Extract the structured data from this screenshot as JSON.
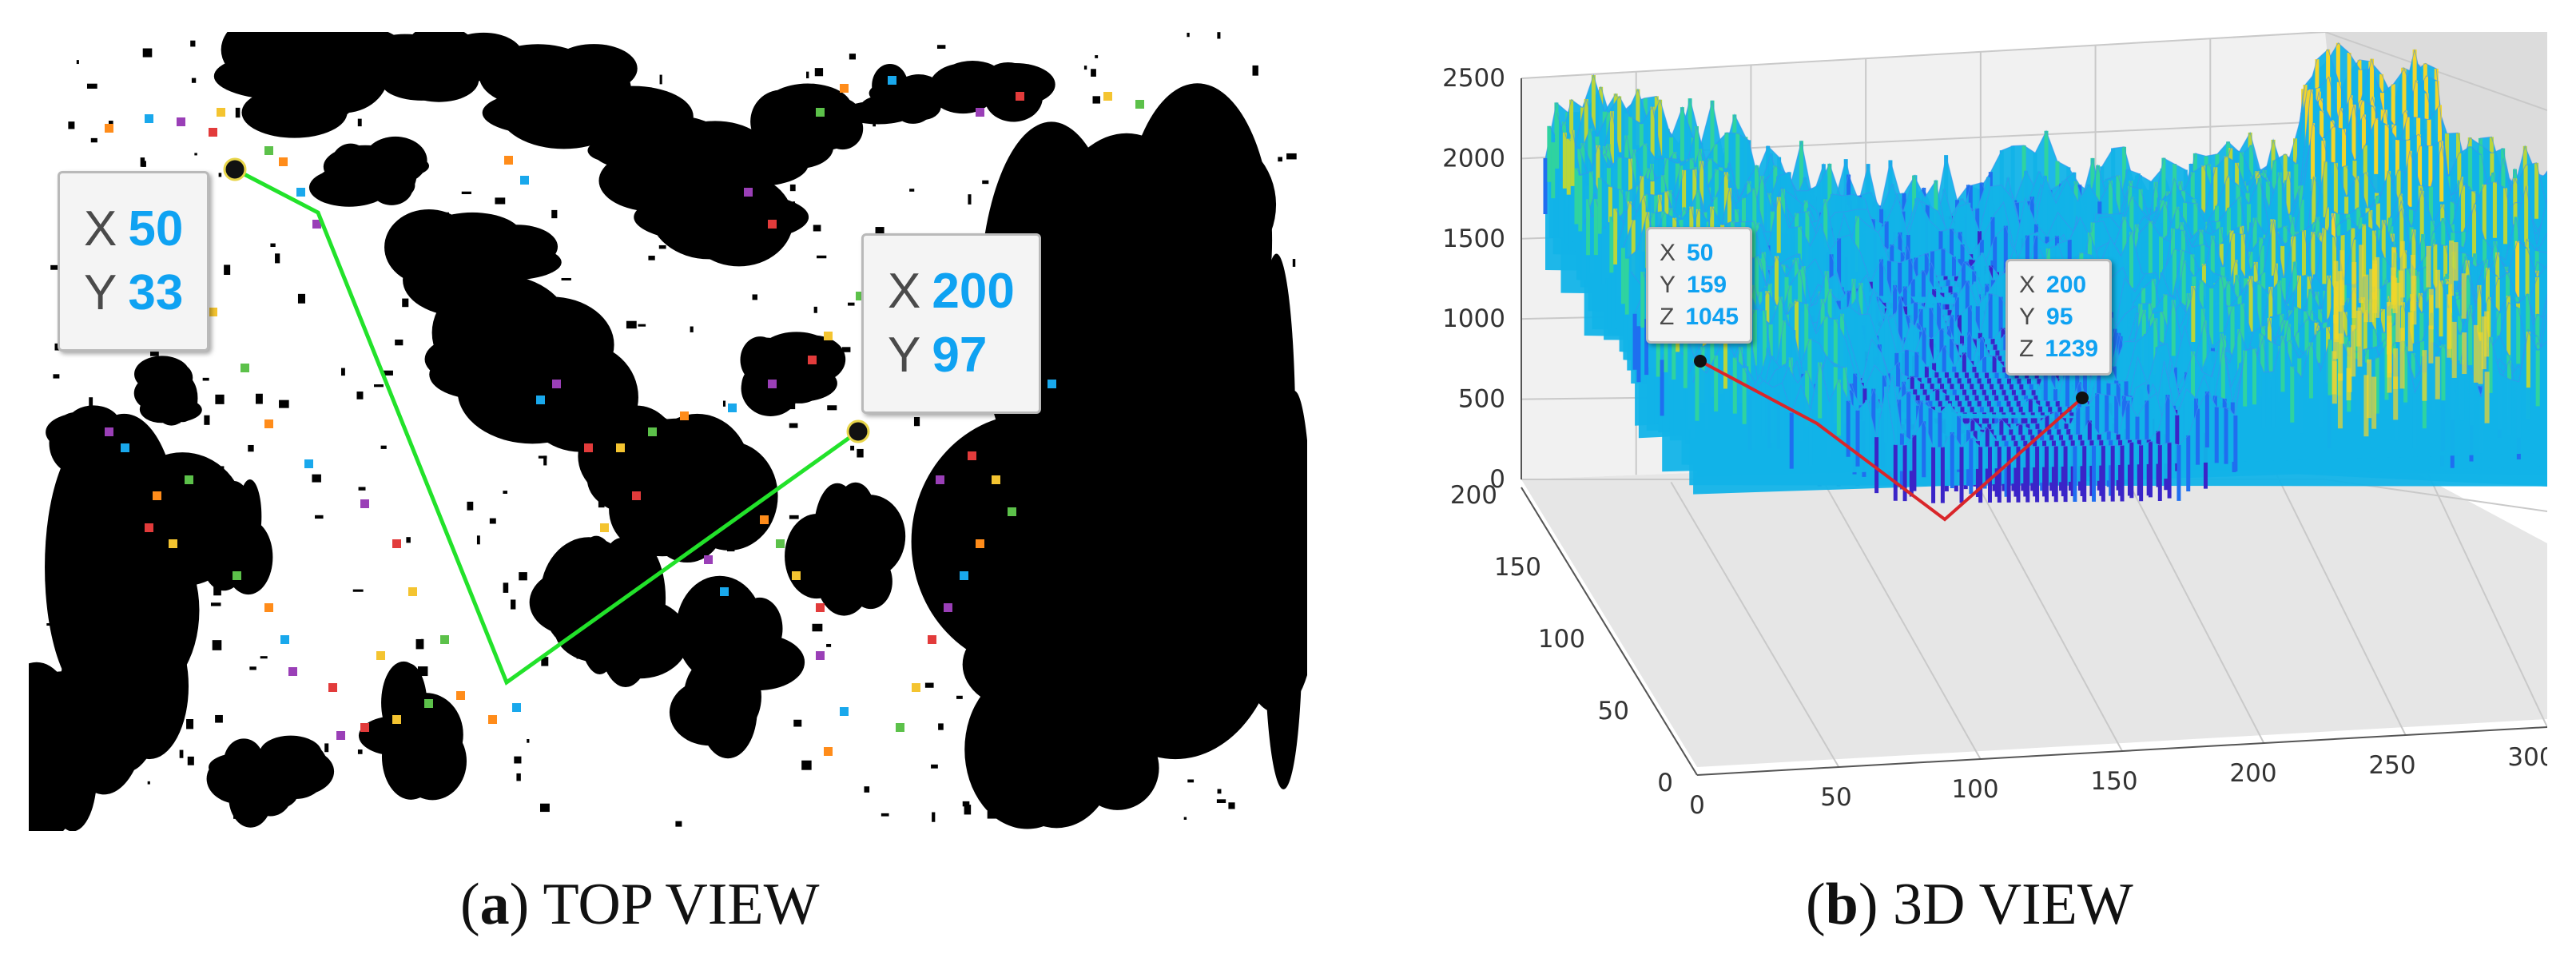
{
  "top_view": {
    "caption_letter": "a",
    "caption_text": "TOP VIEW",
    "start_tip": {
      "x_label": "X",
      "x_value": "50",
      "y_label": "Y",
      "y_value": "33"
    },
    "end_tip": {
      "x_label": "X",
      "x_value": "200",
      "y_label": "Y",
      "y_value": "97"
    },
    "path_color": "#22e22a",
    "obstacle_color": "#000000"
  },
  "view_3d": {
    "caption_letter": "b",
    "caption_text": "3D VIEW",
    "start_tip": {
      "x_label": "X",
      "x_value": "50",
      "y_label": "Y",
      "y_value": "159",
      "z_label": "Z",
      "z_value": "1045"
    },
    "end_tip": {
      "x_label": "X",
      "x_value": "200",
      "y_label": "Y",
      "y_value": "95",
      "z_label": "Z",
      "z_value": "1239"
    },
    "path_color": "#d9262a"
  },
  "chart_data": {
    "type": "surface",
    "z_ticks": [
      "2500",
      "2000",
      "1500",
      "1000",
      "500",
      "0"
    ],
    "y_ticks": [
      "200",
      "150",
      "100",
      "50",
      "0"
    ],
    "x_ticks": [
      "0",
      "50",
      "100",
      "150",
      "200",
      "250",
      "300"
    ],
    "zlim": [
      0,
      2500
    ],
    "ylim": [
      0,
      200
    ],
    "xlim": [
      0,
      300
    ],
    "grid": true,
    "colormap": [
      "#3a24c8",
      "#1f6ef0",
      "#12b3e8",
      "#2fd3a0",
      "#b9d63a",
      "#f2d52a"
    ]
  }
}
